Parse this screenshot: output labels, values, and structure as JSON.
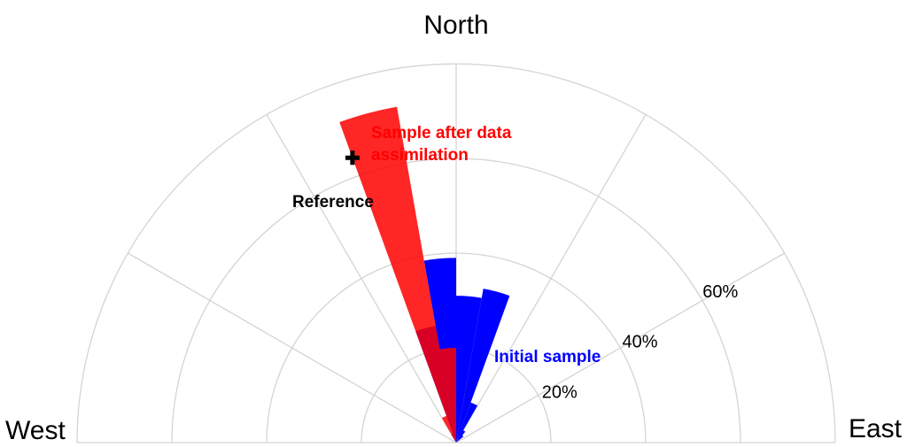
{
  "chart_data": {
    "type": "polar-bar",
    "angle_unit": "degrees (0 = North, clockwise toward East)",
    "radial_unit": "%",
    "rmax": 80,
    "sector_width": 10,
    "rings": [
      20,
      40,
      60,
      80
    ],
    "ring_labels": [
      "20%",
      "40%",
      "60%"
    ],
    "spoke_angles": [
      -90,
      -60,
      -30,
      0,
      30,
      60,
      90
    ],
    "direction_labels": {
      "north": "North",
      "west": "West",
      "east": "East"
    },
    "series": [
      {
        "name": "Initial sample",
        "color": "#0000ff",
        "opacity": 1.0,
        "bins": [
          {
            "start": -30,
            "end": -20,
            "value": 2
          },
          {
            "start": -20,
            "end": -10,
            "value": 25
          },
          {
            "start": -10,
            "end": 0,
            "value": 39
          },
          {
            "start": 0,
            "end": 10,
            "value": 31
          },
          {
            "start": 10,
            "end": 20,
            "value": 33
          },
          {
            "start": 20,
            "end": 30,
            "value": 9
          },
          {
            "start": 30,
            "end": 40,
            "value": 3
          },
          {
            "start": 40,
            "end": 50,
            "value": 2
          }
        ]
      },
      {
        "name": "Sample after data assimilation",
        "color": "#ff0000",
        "opacity": 0.85,
        "bins": [
          {
            "start": -30,
            "end": -20,
            "value": 6
          },
          {
            "start": -20,
            "end": -10,
            "value": 72
          },
          {
            "start": -10,
            "end": 0,
            "value": 20
          }
        ]
      }
    ],
    "reference": {
      "label": "Reference",
      "angle": -20,
      "value": 64,
      "marker": "+"
    },
    "annotations": {
      "after": [
        "Sample after data",
        "assimilation"
      ],
      "initial": "Initial sample",
      "reference": "Reference"
    }
  }
}
